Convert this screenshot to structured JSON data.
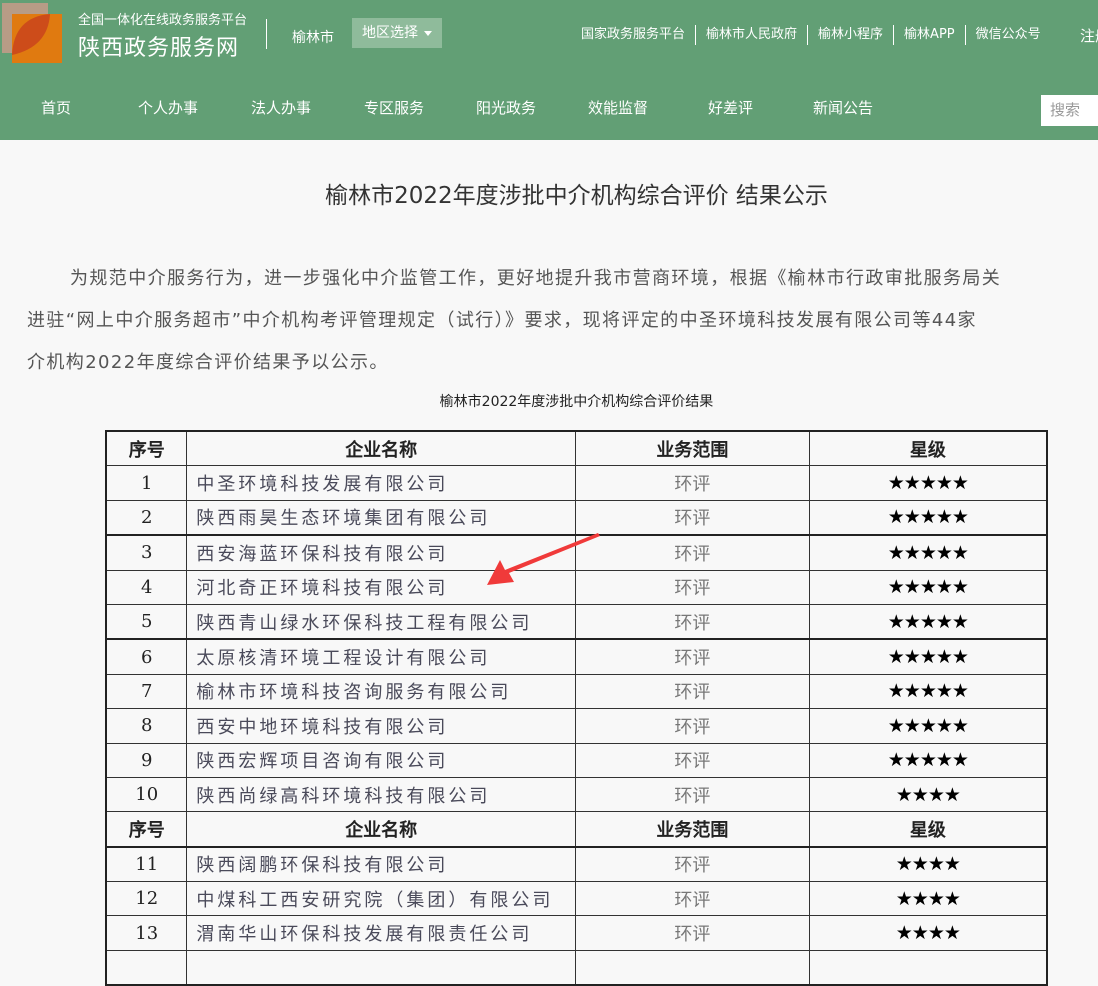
{
  "header": {
    "subtitle": "全国一体化在线政务服务平台",
    "site_name": "陕西政务服务网",
    "city": "榆林市",
    "region_select": "地区选择",
    "top_links": [
      "国家政务服务平台",
      "榆林市人民政府",
      "榆林小程序",
      "榆林APP",
      "微信公众号"
    ],
    "register": "注册",
    "nav": [
      "首页",
      "个人办事",
      "法人办事",
      "专区服务",
      "阳光政务",
      "效能监督",
      "好差评",
      "新闻公告"
    ],
    "search_placeholder": "搜索",
    "colors": {
      "header_bg": "#629f75",
      "logo_orange": "#e07a10"
    }
  },
  "article": {
    "title": "榆林市2022年度涉批中介机构综合评价 结果公示",
    "paragraph_lines": [
      "为规范中介服务行为，进一步强化中介监管工作，更好地提升我市营商环境，根据《榆林市行政审批服务局关",
      "进驻“网上中介服务超市”中介机构考评管理规定（试行）》要求，现将评定的中圣环境科技发展有限公司等44家",
      "介机构2022年度综合评价结果予以公示。"
    ],
    "table_caption": "榆林市2022年度涉批中介机构综合评价结果",
    "table_headers": [
      "序号",
      "企业名称",
      "业务范围",
      "星级"
    ],
    "rows": [
      {
        "no": "1",
        "name": "中圣环境科技发展有限公司",
        "scope": "环评",
        "stars": "★★★★★"
      },
      {
        "no": "2",
        "name": "陕西雨昊生态环境集团有限公司",
        "scope": "环评",
        "stars": "★★★★★"
      },
      {
        "no": "3",
        "name": "西安海蓝环保科技有限公司",
        "scope": "环评",
        "stars": "★★★★★"
      },
      {
        "no": "4",
        "name": "河北奇正环境科技有限公司",
        "scope": "环评",
        "stars": "★★★★★"
      },
      {
        "no": "5",
        "name": "陕西青山绿水环保科技工程有限公司",
        "scope": "环评",
        "stars": "★★★★★"
      },
      {
        "no": "6",
        "name": "太原核清环境工程设计有限公司",
        "scope": "环评",
        "stars": "★★★★★"
      },
      {
        "no": "7",
        "name": "榆林市环境科技咨询服务有限公司",
        "scope": "环评",
        "stars": "★★★★★"
      },
      {
        "no": "8",
        "name": "西安中地环境科技有限公司",
        "scope": "环评",
        "stars": "★★★★★"
      },
      {
        "no": "9",
        "name": "陕西宏辉项目咨询有限公司",
        "scope": "环评",
        "stars": "★★★★★"
      },
      {
        "no": "10",
        "name": "陕西尚绿高科环境科技有限公司",
        "scope": "环评",
        "stars": "★★★★"
      },
      {
        "no": "11",
        "name": "陕西阔鹏环保科技有限公司",
        "scope": "环评",
        "stars": "★★★★"
      },
      {
        "no": "12",
        "name": "中煤科工西安研究院（集团）有限公司",
        "scope": "环评",
        "stars": "★★★★"
      },
      {
        "no": "13",
        "name": "渭南华山环保科技发展有限责任公司",
        "scope": "环评",
        "stars": "★★★★"
      }
    ],
    "arrow_color": "#f03a3a"
  }
}
